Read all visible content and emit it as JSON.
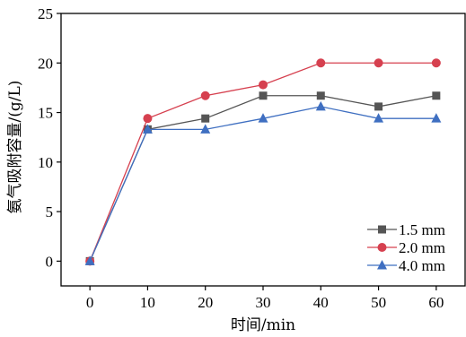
{
  "chart_data": {
    "type": "line",
    "x": [
      0,
      10,
      20,
      30,
      40,
      50,
      60
    ],
    "xlabel": "时间/min",
    "ylabel": "氨气吸附容量/(g/L)",
    "xlim": [
      -5,
      65
    ],
    "ylim": [
      -2.5,
      25
    ],
    "xticks": [
      0,
      10,
      20,
      30,
      40,
      50,
      60
    ],
    "yticks": [
      0,
      5,
      10,
      15,
      20,
      25
    ],
    "grid": false,
    "legend_position": "bottom-right",
    "series": [
      {
        "name": "1.5 mm",
        "marker": "square",
        "color": "#555555",
        "values": [
          0,
          13.3,
          14.4,
          16.7,
          16.7,
          15.6,
          16.7
        ]
      },
      {
        "name": "2.0 mm",
        "marker": "circle",
        "color": "#d6404f",
        "values": [
          0,
          14.4,
          16.7,
          17.8,
          20.0,
          20.0,
          20.0
        ]
      },
      {
        "name": "4.0 mm",
        "marker": "triangle",
        "color": "#3f6fc1",
        "values": [
          0,
          13.3,
          13.3,
          14.4,
          15.6,
          14.4,
          14.4
        ]
      }
    ]
  }
}
